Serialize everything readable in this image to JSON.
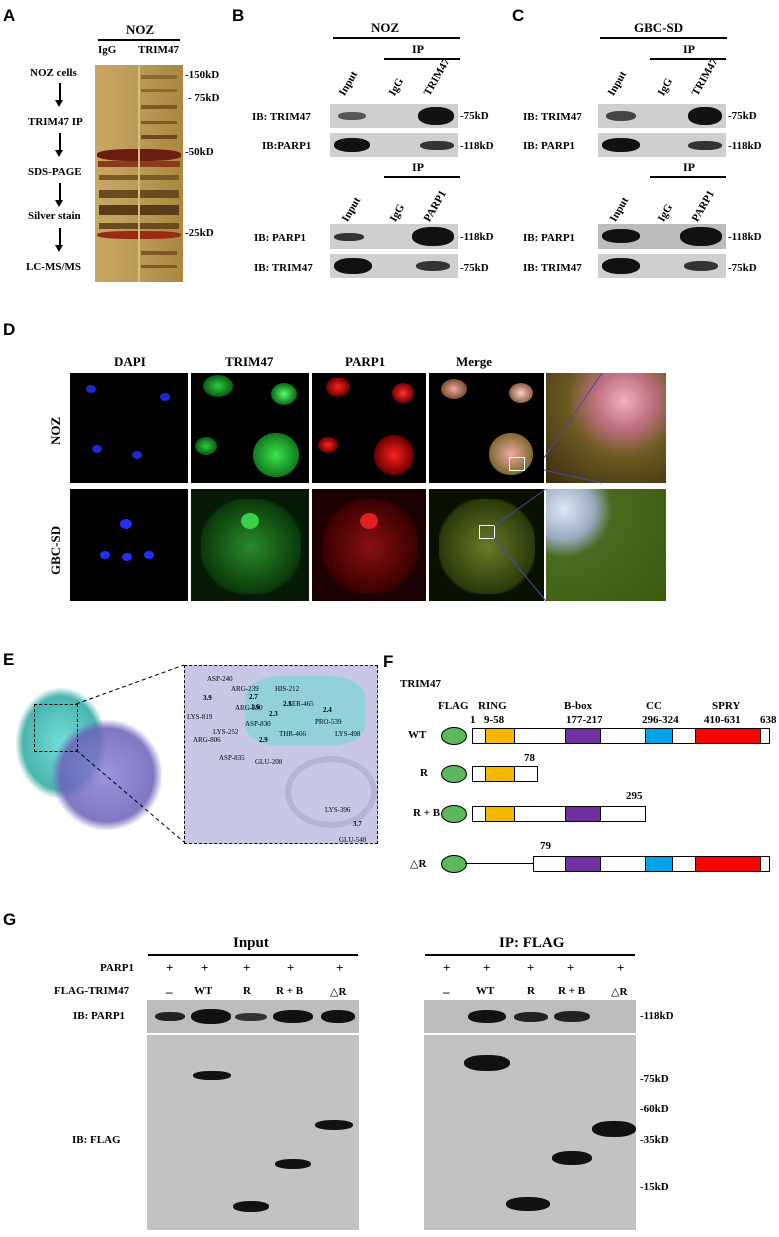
{
  "panel_labels": {
    "A": "A",
    "B": "B",
    "C": "C",
    "D": "D",
    "E": "E",
    "F": "F",
    "G": "G"
  },
  "panelA": {
    "title": "NOZ",
    "lanes": [
      "IgG",
      "TRIM47"
    ],
    "steps": [
      "NOZ cells",
      "TRIM47 IP",
      "SDS-PAGE",
      "Silver stain",
      "LC-MS/MS"
    ],
    "markers": [
      "-150kD",
      "- 75kD",
      "-50kD",
      "-25kD"
    ]
  },
  "panelB": {
    "title": "NOZ",
    "ip": "IP",
    "lanes": [
      "Input",
      "IgG",
      "TRIM47"
    ],
    "lanes2": [
      "Input",
      "IgG",
      "PARP1"
    ],
    "rows_top": [
      {
        "label": "IB: TRIM47",
        "size": "-75kD"
      },
      {
        "label": "IB:PARP1",
        "size": "-118kD"
      }
    ],
    "rows_bottom": [
      {
        "label": "IB: PARP1",
        "size": "-118kD"
      },
      {
        "label": "IB: TRIM47",
        "size": "-75kD"
      }
    ]
  },
  "panelC": {
    "title": "GBC-SD",
    "ip": "IP",
    "lanes": [
      "Input",
      "IgG",
      "TRIM47"
    ],
    "lanes2": [
      "Input",
      "IgG",
      "PARP1"
    ],
    "rows_top": [
      {
        "label": "IB: TRIM47",
        "size": "-75kD"
      },
      {
        "label": "IB: PARP1",
        "size": "-118kD"
      }
    ],
    "rows_bottom": [
      {
        "label": "IB: PARP1",
        "size": "-118kD"
      },
      {
        "label": "IB: TRIM47",
        "size": "-75kD"
      }
    ]
  },
  "panelD": {
    "columns": [
      "DAPI",
      "TRIM47",
      "PARP1",
      "Merge"
    ],
    "rows": [
      "NOZ",
      "GBC-SD"
    ]
  },
  "panelE": {
    "residues": [
      "ASP-240",
      "ARG-239",
      "HIS-212",
      "LYS-819",
      "ARG-250",
      "SER-465",
      "PRO-539",
      "ASP-830",
      "LYS-252",
      "THR-466",
      "LYS-498",
      "ARG-806",
      "ASP-835",
      "GLU-208",
      "LYS-396",
      "GLU-540"
    ],
    "distances": [
      "3.9",
      "2.7",
      "1.6",
      "2.3",
      "2.1",
      "2.4",
      "2.9",
      "3.7"
    ]
  },
  "panelF": {
    "title": "TRIM47",
    "flag": "FLAG",
    "domains": [
      {
        "name": "RING",
        "range": "9-58"
      },
      {
        "name": "B-box",
        "range": "177-217"
      },
      {
        "name": "CC",
        "range": "296-324"
      },
      {
        "name": "SPRY",
        "range": "410-631"
      }
    ],
    "start": "1",
    "end": "638",
    "constructs": [
      {
        "name": "WT",
        "end": ""
      },
      {
        "name": "R",
        "end": "78"
      },
      {
        "name": "R + B",
        "end": "295"
      },
      {
        "name": "△R",
        "end": "79"
      }
    ],
    "colors": {
      "ring": "#f5b800",
      "bbox": "#7030a0",
      "cc": "#00a2e8",
      "spry": "#ff0000",
      "flag": "#5cb85c"
    }
  },
  "panelG": {
    "input_title": "Input",
    "ip_title": "IP: FLAG",
    "row_parp1": "PARP1",
    "row_flag": "FLAG-TRIM47",
    "plus": [
      "+",
      "+",
      "+",
      "+",
      "+"
    ],
    "lanes": [
      "–",
      "WT",
      "R",
      "R + B",
      "△R"
    ],
    "ib_parp1": "IB: PARP1",
    "ib_flag": "IB: FLAG",
    "markers": [
      "-118kD",
      "-75kD",
      "-60kD",
      "-35kD",
      "-15kD"
    ]
  }
}
